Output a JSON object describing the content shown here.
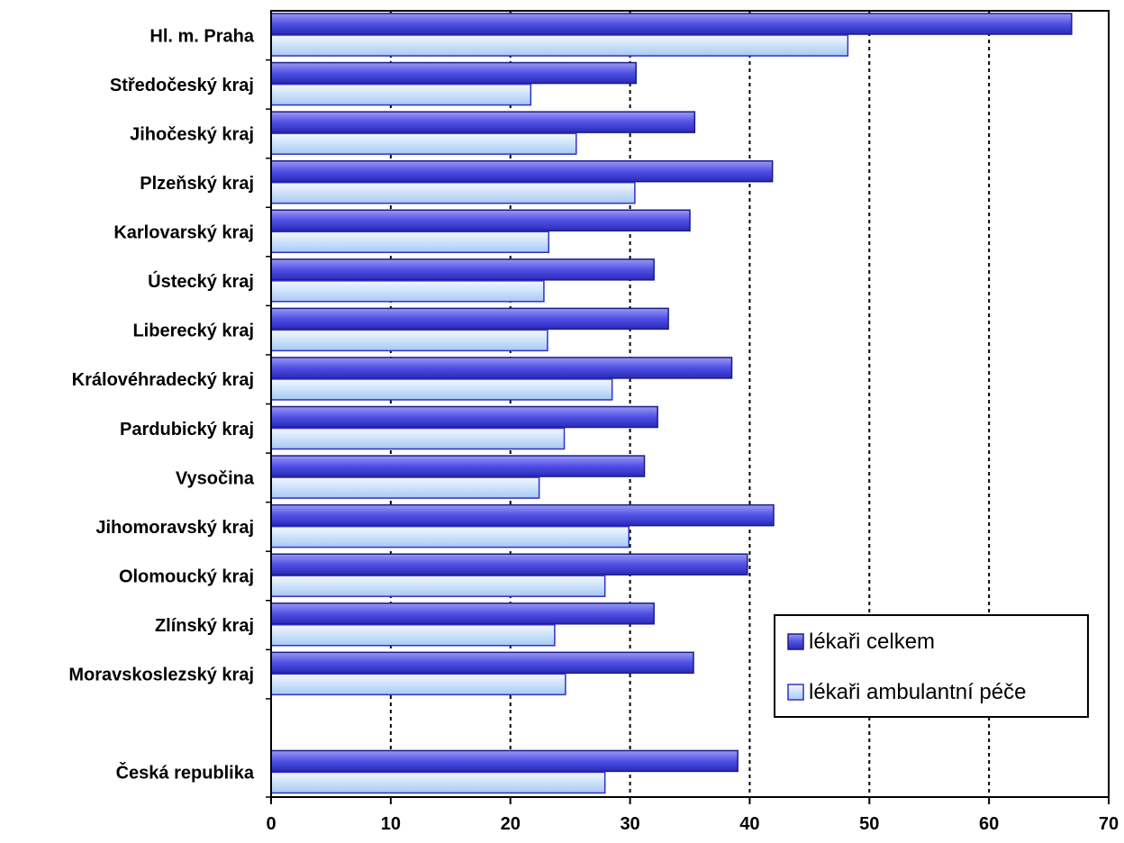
{
  "chart_data": {
    "type": "bar",
    "orientation": "horizontal",
    "title": "",
    "xlabel": "",
    "ylabel": "",
    "categories": [
      "Hl. m. Praha",
      "Středočeský kraj",
      "Jihočeský kraj",
      "Plzeňský kraj",
      "Karlovarský kraj",
      "Ústecký kraj",
      "Liberecký kraj",
      "Královéhradecký kraj",
      "Pardubický kraj",
      "Vysočina",
      "Jihomoravský kraj",
      "Olomoucký kraj",
      "Zlínský kraj",
      "Moravskoslezský kraj",
      "",
      "Česká republika"
    ],
    "series": [
      {
        "name": "lékaři celkem",
        "values": [
          66.9,
          30.5,
          35.4,
          41.9,
          35.0,
          32.0,
          33.2,
          38.5,
          32.3,
          31.2,
          42.0,
          39.8,
          32.0,
          35.3,
          null,
          39.0
        ],
        "color": "#4040d8"
      },
      {
        "name": "lékaři ambulantní péče",
        "values": [
          48.2,
          21.7,
          25.5,
          30.4,
          23.2,
          22.8,
          23.1,
          28.5,
          24.5,
          22.4,
          29.9,
          27.9,
          23.7,
          24.6,
          null,
          27.9
        ],
        "color": "#c4dcfa"
      }
    ],
    "xlim": [
      0,
      70
    ],
    "xticks": [
      0,
      10,
      20,
      30,
      40,
      50,
      60,
      70
    ],
    "grid": "vertical dotted",
    "legend": "bottom-right"
  }
}
